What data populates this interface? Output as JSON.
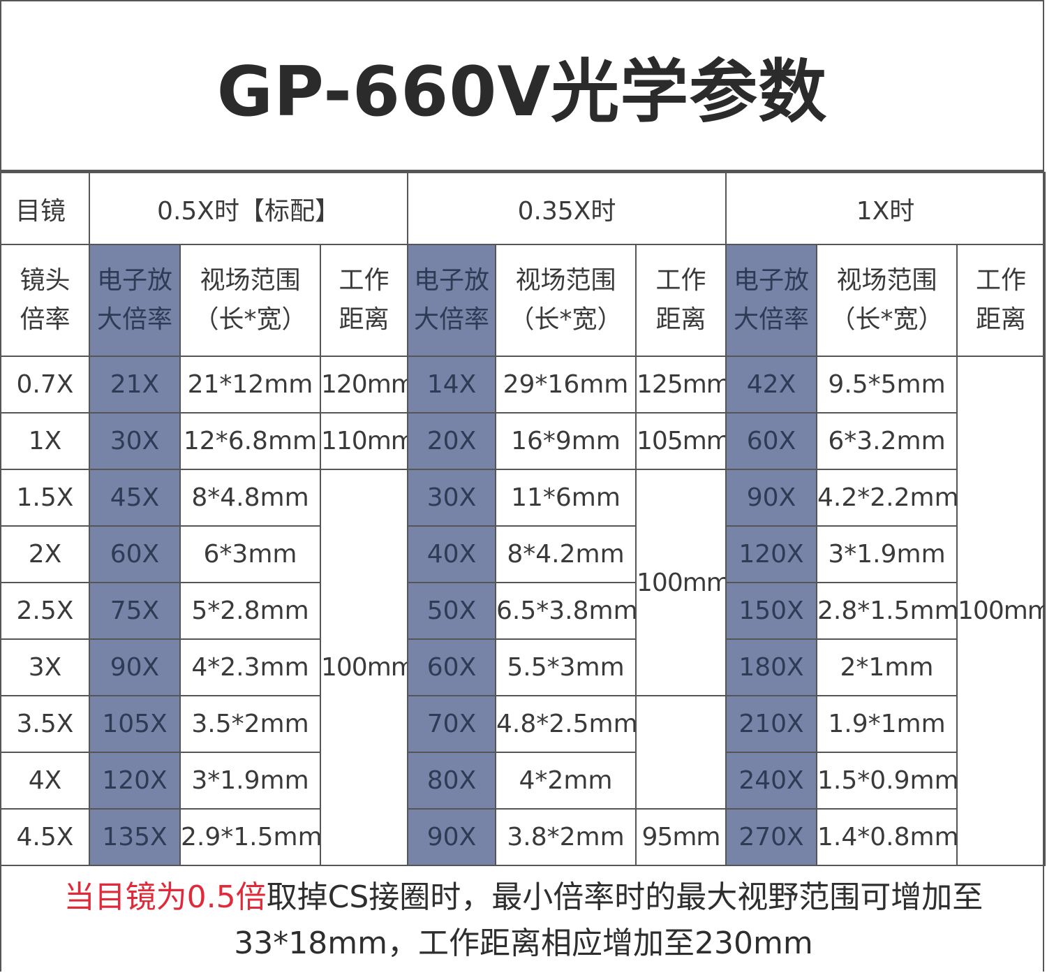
{
  "title": "GP-660V光学参数",
  "header": {
    "eyepiece_label": "目镜",
    "groups": [
      "0.5X时【标配】",
      "0.35X时",
      "1X时"
    ],
    "lens_mag_line1": "镜头",
    "lens_mag_line2": "倍率",
    "col_zoom_line1": "电子放",
    "col_zoom_line2": "大倍率",
    "col_fov_line1": "视场范围",
    "col_fov_line2": "（长*宽）",
    "col_wd_line1": "工作",
    "col_wd_line2": "距离"
  },
  "lens_mags": [
    "0.7X",
    "1X",
    "1.5X",
    "2X",
    "2.5X",
    "3X",
    "3.5X",
    "4X",
    "4.5X"
  ],
  "group_05": {
    "zoom": [
      "21X",
      "30X",
      "45X",
      "60X",
      "75X",
      "90X",
      "105X",
      "120X",
      "135X"
    ],
    "fov": [
      "21*12mm",
      "12*6.8mm",
      "8*4.8mm",
      "6*3mm",
      "5*2.8mm",
      "4*2.3mm",
      "3.5*2mm",
      "3*1.9mm",
      "2.9*1.5mm"
    ],
    "wd": [
      "120mm",
      "110mm",
      "100mm"
    ]
  },
  "group_035": {
    "zoom": [
      "14X",
      "20X",
      "30X",
      "40X",
      "50X",
      "60X",
      "70X",
      "80X",
      "90X"
    ],
    "fov": [
      "29*16mm",
      "16*9mm",
      "11*6mm",
      "8*4.2mm",
      "6.5*3.8mm",
      "5.5*3mm",
      "4.8*2.5mm",
      "4*2mm",
      "3.8*2mm"
    ],
    "wd": [
      "125mm",
      "105mm",
      "100mm",
      "",
      "95mm"
    ]
  },
  "group_1x": {
    "zoom": [
      "42X",
      "60X",
      "90X",
      "120X",
      "150X",
      "180X",
      "210X",
      "240X",
      "270X"
    ],
    "fov": [
      "9.5*5mm",
      "6*3.2mm",
      "4.2*2.2mm",
      "3*1.9mm",
      "2.8*1.5mm",
      "2*1mm",
      "1.9*1mm",
      "1.5*0.9mm",
      "1.4*0.8mm"
    ],
    "wd": [
      "100mm"
    ]
  },
  "footer": {
    "highlight": "当目镜为0.5倍",
    "line1_rest": "取掉CS接圈时，最小倍率时的最大视野范围可增加至",
    "line2": "33*18mm，工作距离相应增加至230mm"
  },
  "colors": {
    "blue_cell": "#7784a8",
    "highlight_red": "#e02a3a"
  }
}
